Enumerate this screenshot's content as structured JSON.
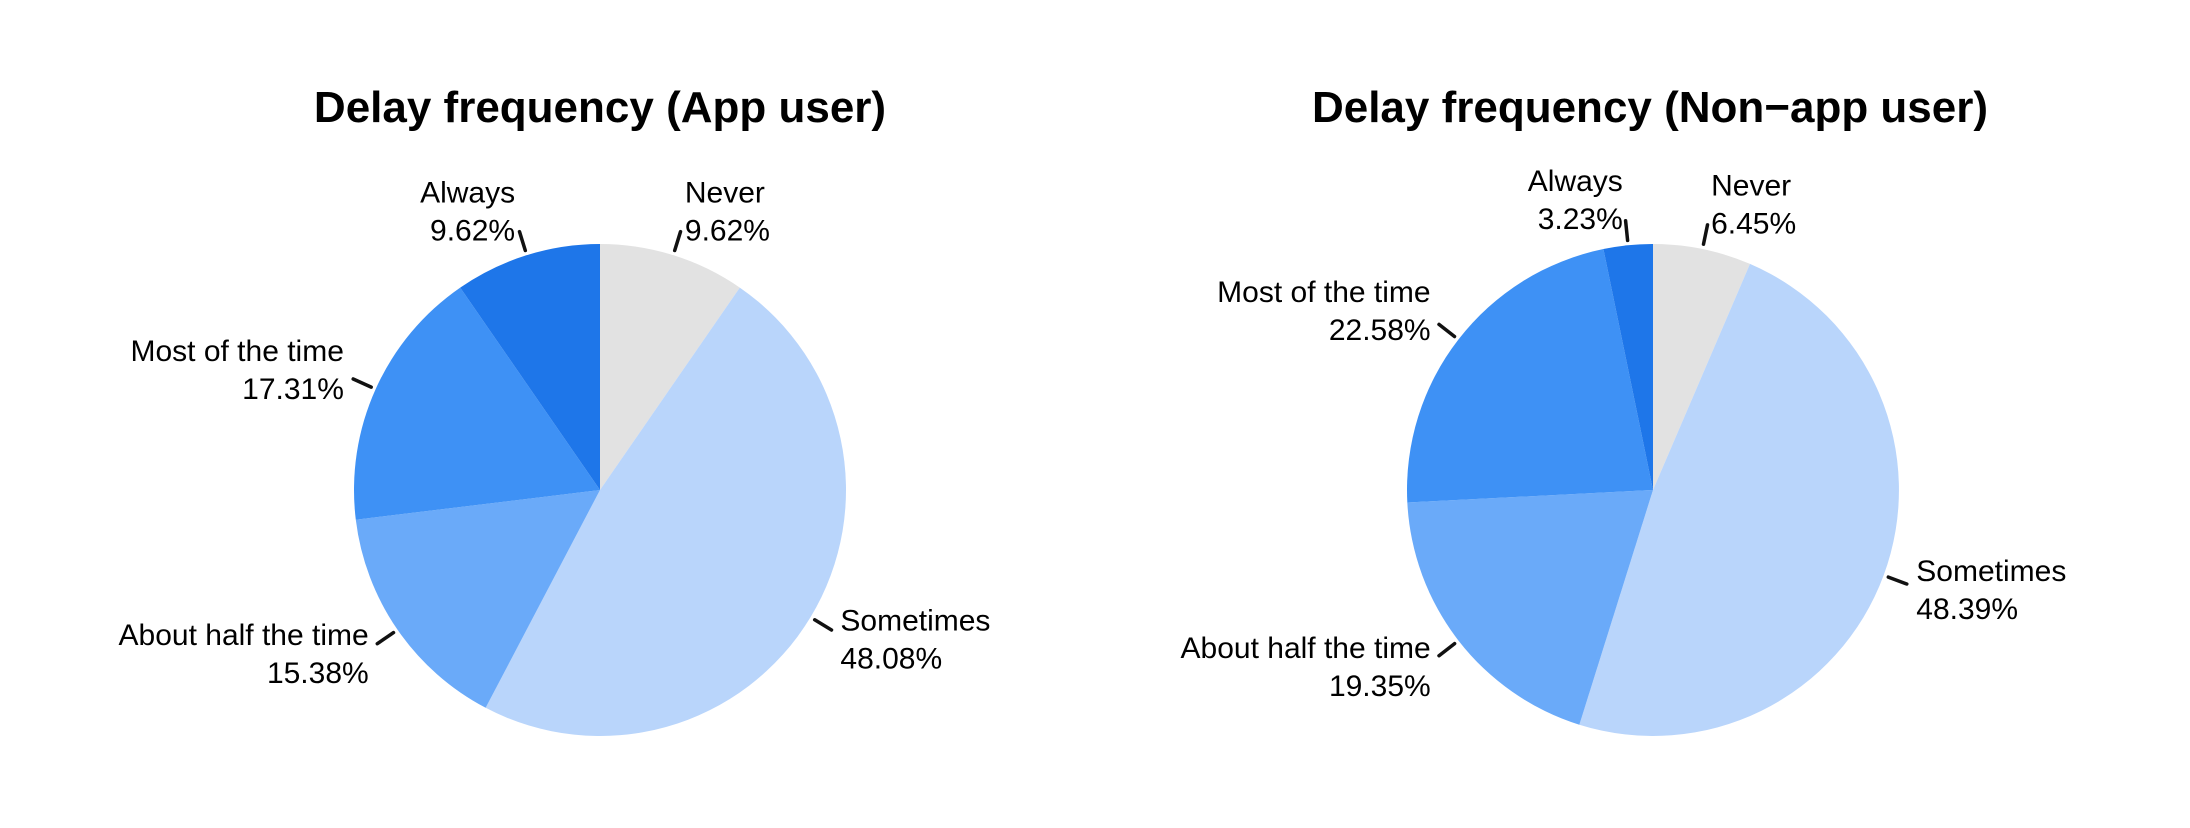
{
  "chart_data": [
    {
      "type": "pie",
      "title": "Delay frequency (App user)",
      "categories": [
        "Never",
        "Sometimes",
        "About half the time",
        "Most of the time",
        "Always"
      ],
      "values": [
        9.62,
        48.08,
        15.38,
        17.31,
        9.62
      ],
      "value_labels": [
        "9.62%",
        "48.08%",
        "15.38%",
        "17.31%",
        "9.62%"
      ],
      "colors": [
        "#E2E2E2",
        "#B9D5FB",
        "#6AAAF9",
        "#3E91F5",
        "#1E76E9"
      ],
      "start_angle": "12 o'clock",
      "direction": "clockwise",
      "legend_position": "none",
      "label_style": "outside labels with leader ticks, category name over percentage"
    },
    {
      "type": "pie",
      "title": "Delay frequency (Non−app user)",
      "categories": [
        "Never",
        "Sometimes",
        "About half the time",
        "Most of the time",
        "Always"
      ],
      "values": [
        6.45,
        48.39,
        19.35,
        22.58,
        3.23
      ],
      "value_labels": [
        "6.45%",
        "48.39%",
        "19.35%",
        "22.58%",
        "3.23%"
      ],
      "colors": [
        "#E2E2E2",
        "#B9D5FB",
        "#6AAAF9",
        "#3E91F5",
        "#1E76E9"
      ],
      "start_angle": "12 o'clock",
      "direction": "clockwise",
      "legend_position": "none",
      "label_style": "outside labels with leader ticks, category name over percentage"
    }
  ],
  "page_background": "#FFFFFF"
}
